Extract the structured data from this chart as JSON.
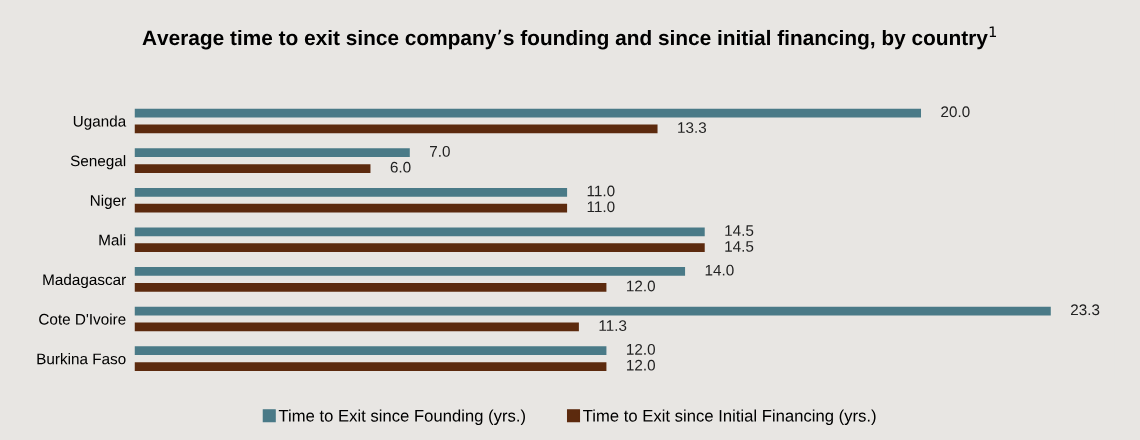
{
  "chart_data": {
    "type": "bar",
    "orientation": "horizontal",
    "title": "Average time to exit since company’s founding and since initial financing, by country$^{1}$",
    "categories": [
      "Uganda",
      "Senegal",
      "Niger",
      "Mali",
      "Madagascar",
      "Cote D'Ivoire",
      "Burkina Faso"
    ],
    "series": [
      {
        "name": "Time to Exit since Founding (yrs.)",
        "color": "#4a7a87",
        "values": [
          20.0,
          7.0,
          11.0,
          14.5,
          14.0,
          23.3,
          12.0
        ],
        "value_labels": [
          "20.0",
          "7.0",
          "11.0",
          "14.5",
          "14.0",
          "23.3",
          "12.0"
        ]
      },
      {
        "name": "Time to Exit since Initial Financing (yrs.)",
        "color": "#5c2a0e",
        "values": [
          13.3,
          6.0,
          11.0,
          14.5,
          12.0,
          11.3,
          12.0
        ],
        "value_labels": [
          "13.3",
          "6.0",
          "11.0",
          "14.5",
          "12.0",
          "11.3",
          "12.0"
        ]
      }
    ],
    "legend": "bottom"
  }
}
